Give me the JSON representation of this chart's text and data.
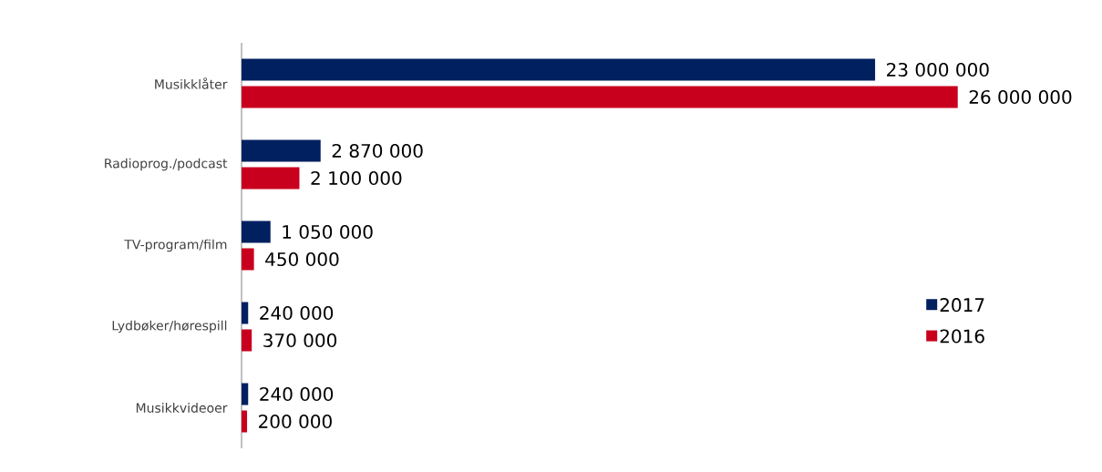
{
  "chart_data": {
    "type": "bar",
    "orientation": "horizontal",
    "data_labels": true,
    "legend": "right",
    "categories": [
      "Musikklåter",
      "Radioprog./podcast",
      "TV-program/film",
      "Lydbøker/hørespill",
      "Musikkvideoer"
    ],
    "series": [
      {
        "name": "2017",
        "color": "#002060",
        "values": [
          23000000,
          2870000,
          1050000,
          240000,
          240000
        ]
      },
      {
        "name": "2016",
        "color": "#c8001e",
        "values": [
          26000000,
          2100000,
          450000,
          370000,
          200000
        ]
      }
    ]
  }
}
